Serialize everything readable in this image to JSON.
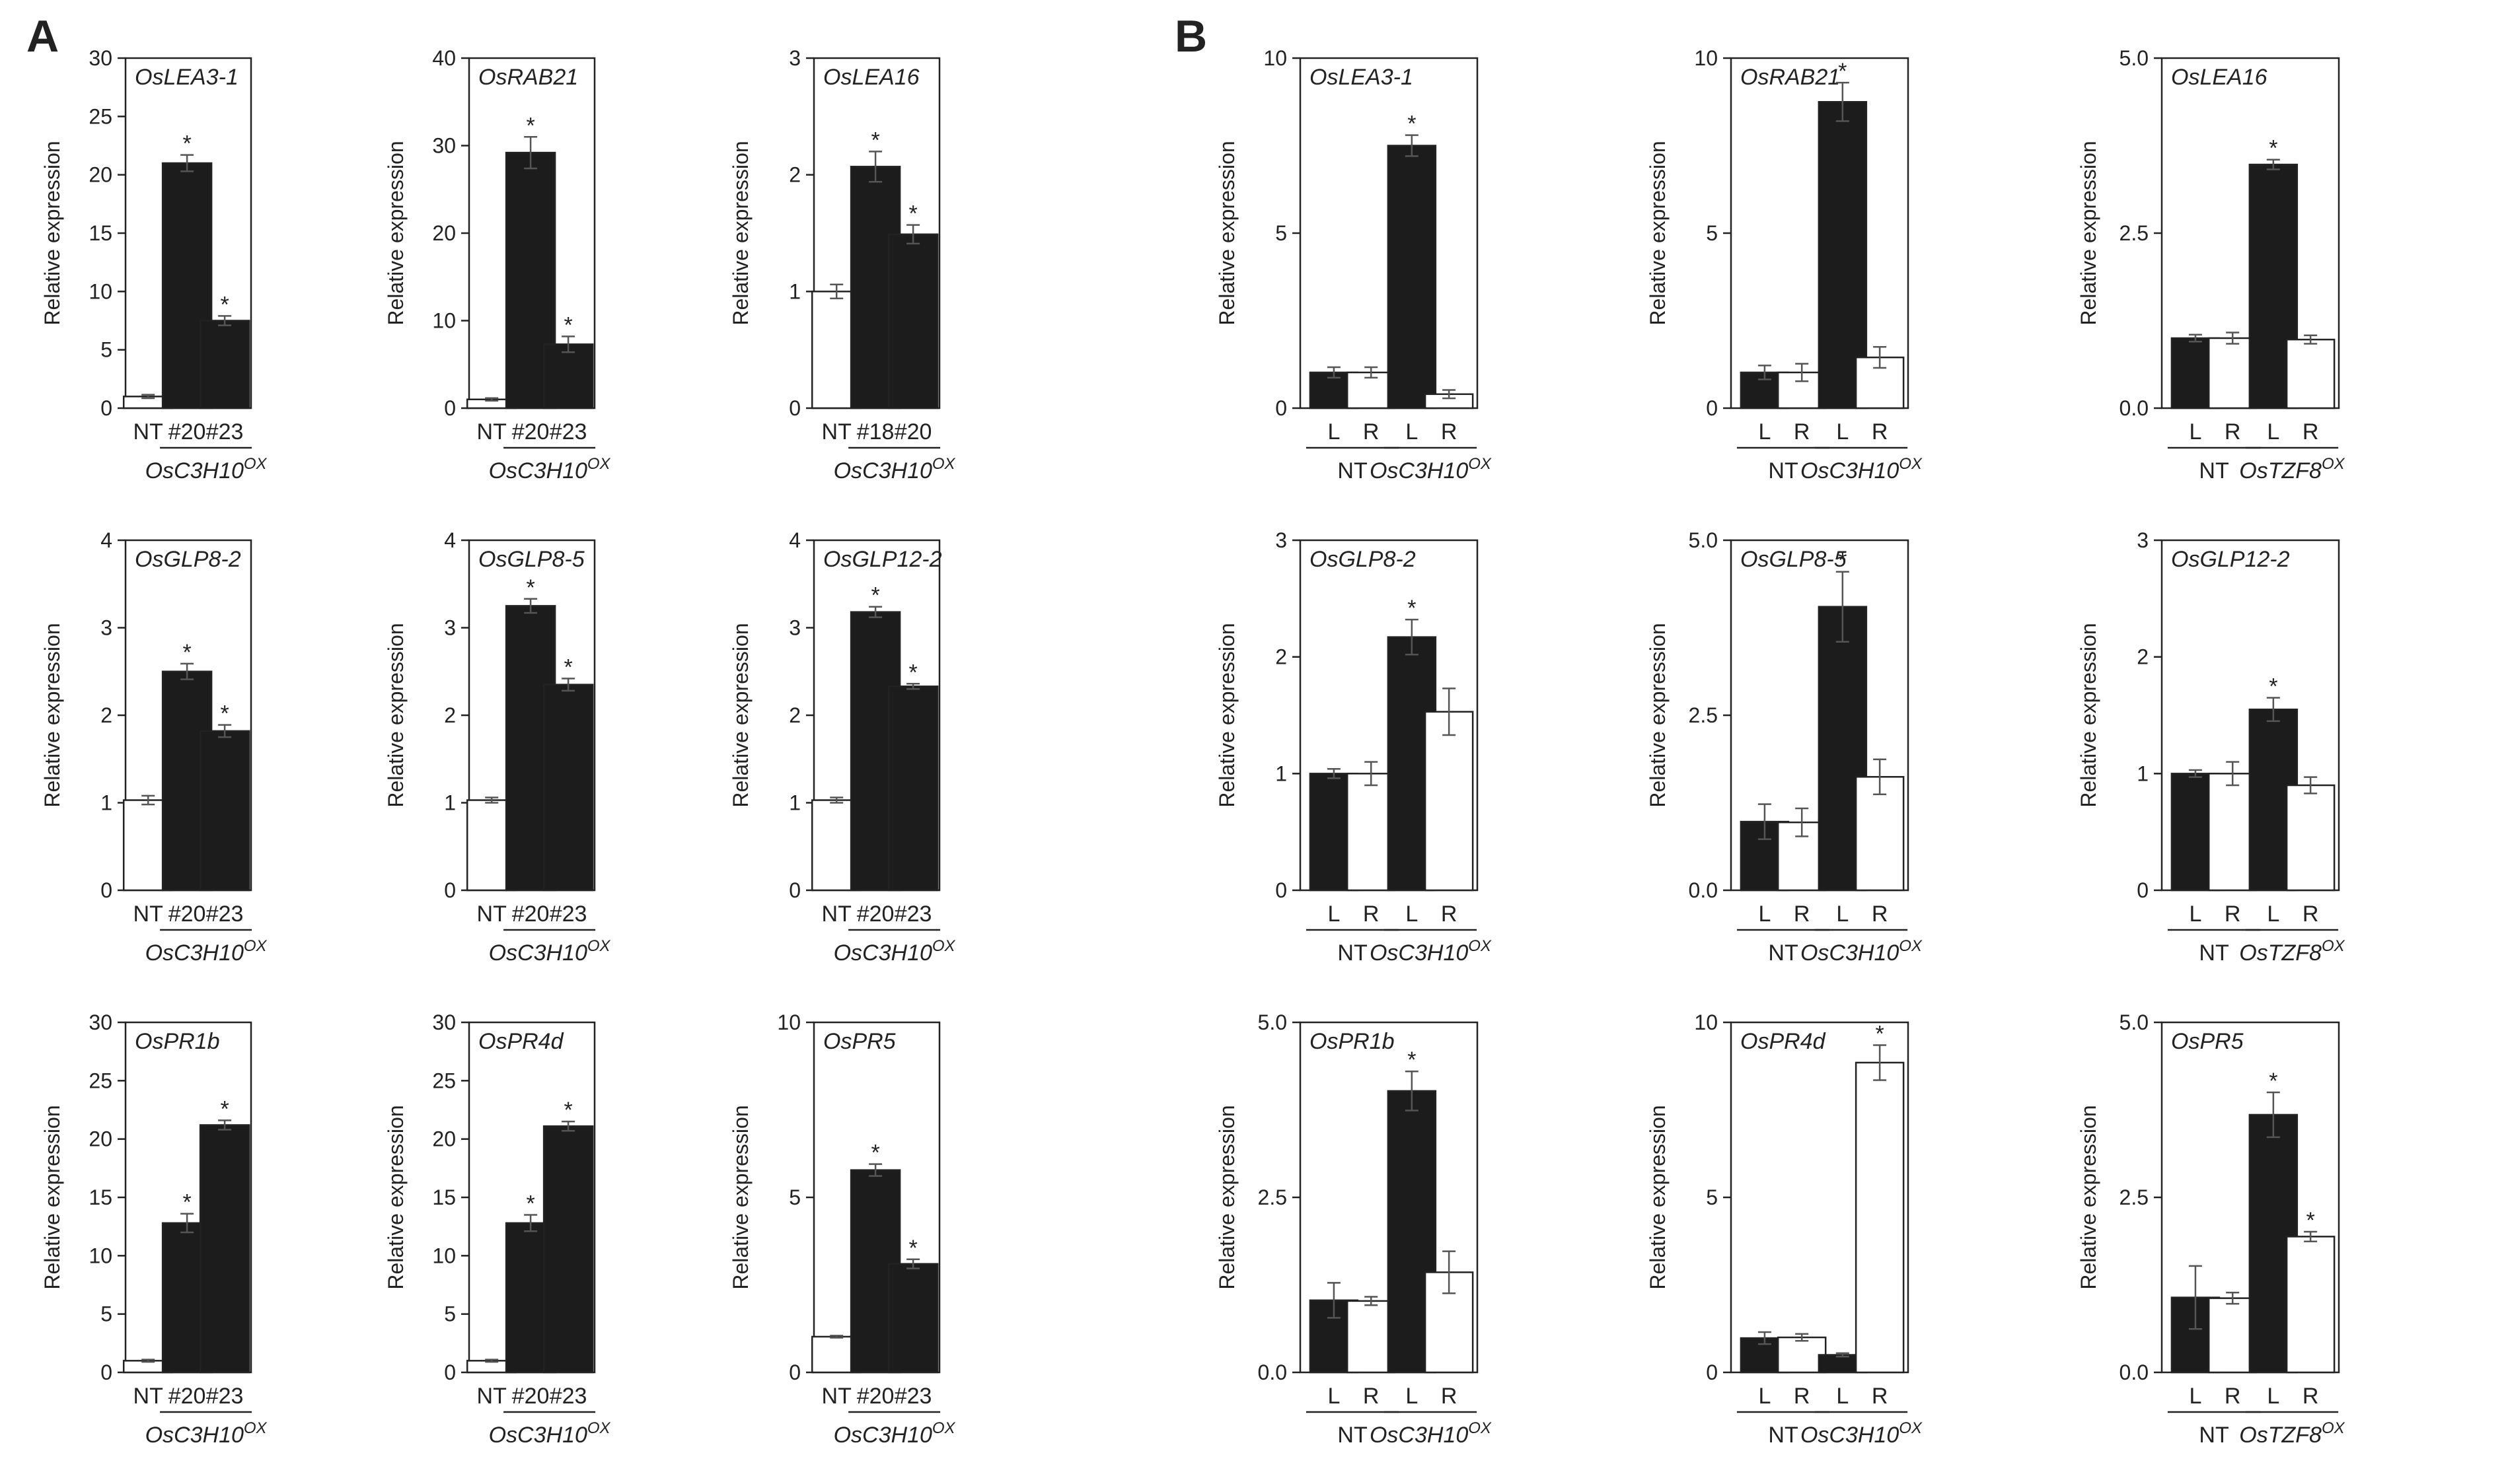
{
  "panels": [
    {
      "letter": "A"
    },
    {
      "letter": "B"
    }
  ],
  "colors": {
    "filled": "#1c1c1c",
    "open": "#ffffff",
    "stroke": "#222222",
    "error": "#555555"
  },
  "chart_data": [
    {
      "panel": "A",
      "type": "bar",
      "title": "OsLEA3-1",
      "ylabel": "Relative expression",
      "ylim": [
        0,
        30
      ],
      "yticks": [
        "0",
        "5",
        "10",
        "15",
        "20",
        "25",
        "30"
      ],
      "categories": [
        "NT",
        "#20",
        "#23"
      ],
      "values": [
        1,
        21,
        7.5
      ],
      "errors": [
        0.15,
        0.7,
        0.4
      ],
      "significant": [
        false,
        true,
        true
      ],
      "fills": [
        "open",
        "filled",
        "filled"
      ],
      "group": {
        "name": "OsC3H10",
        "sup": "OX",
        "members": [
          1,
          2
        ]
      }
    },
    {
      "panel": "A",
      "type": "bar",
      "title": "OsRAB21",
      "ylabel": "Relative expression",
      "ylim": [
        0,
        40
      ],
      "yticks": [
        "0",
        "10",
        "20",
        "30",
        "40"
      ],
      "categories": [
        "NT",
        "#20",
        "#23"
      ],
      "values": [
        1,
        29.2,
        7.3
      ],
      "errors": [
        0.15,
        1.8,
        0.9
      ],
      "significant": [
        false,
        true,
        true
      ],
      "fills": [
        "open",
        "filled",
        "filled"
      ],
      "group": {
        "name": "OsC3H10",
        "sup": "OX",
        "members": [
          1,
          2
        ]
      }
    },
    {
      "panel": "A",
      "type": "bar",
      "title": "OsLEA16",
      "ylabel": "Relative expression",
      "ylim": [
        0,
        3
      ],
      "yticks": [
        "0",
        "1",
        "2",
        "3"
      ],
      "categories": [
        "NT",
        "#18",
        "#20"
      ],
      "values": [
        1,
        2.07,
        1.49
      ],
      "errors": [
        0.06,
        0.13,
        0.08
      ],
      "significant": [
        false,
        true,
        true
      ],
      "fills": [
        "open",
        "filled",
        "filled"
      ],
      "group": {
        "name": "OsC3H10",
        "sup": "OX",
        "members": [
          1,
          2
        ]
      }
    },
    {
      "panel": "A",
      "type": "bar",
      "title": "OsGLP8-2",
      "ylabel": "Relative expression",
      "ylim": [
        0,
        4
      ],
      "yticks": [
        "0",
        "1",
        "2",
        "3",
        "4"
      ],
      "categories": [
        "NT",
        "#20",
        "#23"
      ],
      "values": [
        1.03,
        2.5,
        1.82
      ],
      "errors": [
        0.05,
        0.09,
        0.07
      ],
      "significant": [
        false,
        true,
        true
      ],
      "fills": [
        "open",
        "filled",
        "filled"
      ],
      "group": {
        "name": "OsC3H10",
        "sup": "OX",
        "members": [
          1,
          2
        ]
      }
    },
    {
      "panel": "A",
      "type": "bar",
      "title": "OsGLP8-5",
      "ylabel": "Relative expression",
      "ylim": [
        0,
        4
      ],
      "yticks": [
        "0",
        "1",
        "2",
        "3",
        "4"
      ],
      "categories": [
        "NT",
        "#20",
        "#23"
      ],
      "values": [
        1.03,
        3.25,
        2.35
      ],
      "errors": [
        0.03,
        0.08,
        0.07
      ],
      "significant": [
        false,
        true,
        true
      ],
      "fills": [
        "open",
        "filled",
        "filled"
      ],
      "group": {
        "name": "OsC3H10",
        "sup": "OX",
        "members": [
          1,
          2
        ]
      }
    },
    {
      "panel": "A",
      "type": "bar",
      "title": "OsGLP12-2",
      "ylabel": "Relative expression",
      "ylim": [
        0,
        4
      ],
      "yticks": [
        "0",
        "1",
        "2",
        "3",
        "4"
      ],
      "categories": [
        "NT",
        "#20",
        "#23"
      ],
      "values": [
        1.03,
        3.18,
        2.33
      ],
      "errors": [
        0.03,
        0.06,
        0.03
      ],
      "significant": [
        false,
        true,
        true
      ],
      "fills": [
        "open",
        "filled",
        "filled"
      ],
      "group": {
        "name": "OsC3H10",
        "sup": "OX",
        "members": [
          1,
          2
        ]
      }
    },
    {
      "panel": "A",
      "type": "bar",
      "title": "OsPR1b",
      "ylabel": "Relative expression",
      "ylim": [
        0,
        30
      ],
      "yticks": [
        "0",
        "5",
        "10",
        "15",
        "20",
        "25",
        "30"
      ],
      "categories": [
        "NT",
        "#20",
        "#23"
      ],
      "values": [
        1,
        12.8,
        21.2
      ],
      "errors": [
        0.1,
        0.8,
        0.4
      ],
      "significant": [
        false,
        true,
        true
      ],
      "fills": [
        "open",
        "filled",
        "filled"
      ],
      "group": {
        "name": "OsC3H10",
        "sup": "OX",
        "members": [
          1,
          2
        ]
      }
    },
    {
      "panel": "A",
      "type": "bar",
      "title": "OsPR4d",
      "ylabel": "Relative expression",
      "ylim": [
        0,
        30
      ],
      "yticks": [
        "0",
        "5",
        "10",
        "15",
        "20",
        "25",
        "30"
      ],
      "categories": [
        "NT",
        "#20",
        "#23"
      ],
      "values": [
        1,
        12.8,
        21.1
      ],
      "errors": [
        0.1,
        0.7,
        0.4
      ],
      "significant": [
        false,
        true,
        true
      ],
      "fills": [
        "open",
        "filled",
        "filled"
      ],
      "group": {
        "name": "OsC3H10",
        "sup": "OX",
        "members": [
          1,
          2
        ]
      }
    },
    {
      "panel": "A",
      "type": "bar",
      "title": "OsPR5",
      "ylabel": "Relative expression",
      "ylim": [
        0,
        10
      ],
      "yticks": [
        "0",
        "5",
        "10"
      ],
      "categories": [
        "NT",
        "#20",
        "#23"
      ],
      "values": [
        1.02,
        5.78,
        3.1
      ],
      "errors": [
        0.03,
        0.17,
        0.13
      ],
      "significant": [
        false,
        true,
        true
      ],
      "fills": [
        "open",
        "filled",
        "filled"
      ],
      "group": {
        "name": "OsC3H10",
        "sup": "OX",
        "members": [
          1,
          2
        ]
      }
    },
    {
      "panel": "B",
      "type": "bar",
      "title": "OsLEA3-1",
      "ylabel": "Relative expression",
      "ylim": [
        0,
        10
      ],
      "yticks": [
        "0",
        "5",
        "10"
      ],
      "categories": [
        "L",
        "R",
        "L",
        "R"
      ],
      "values": [
        1.02,
        1.02,
        7.5,
        0.4
      ],
      "errors": [
        0.15,
        0.15,
        0.3,
        0.12
      ],
      "significant": [
        false,
        false,
        true,
        false
      ],
      "fills": [
        "filled",
        "open",
        "filled",
        "open"
      ],
      "groups": [
        {
          "name": "NT",
          "sup": "",
          "members": [
            0,
            1
          ]
        },
        {
          "name": "OsC3H10",
          "sup": "OX",
          "members": [
            2,
            3
          ]
        }
      ]
    },
    {
      "panel": "B",
      "type": "bar",
      "title": "OsRAB21",
      "ylabel": "Relative expression",
      "ylim": [
        0,
        10
      ],
      "yticks": [
        "0",
        "5",
        "10"
      ],
      "categories": [
        "L",
        "R",
        "L",
        "R"
      ],
      "values": [
        1.02,
        1.02,
        8.75,
        1.45
      ],
      "errors": [
        0.2,
        0.25,
        0.55,
        0.3
      ],
      "significant": [
        false,
        false,
        true,
        false
      ],
      "fills": [
        "filled",
        "open",
        "filled",
        "open"
      ],
      "groups": [
        {
          "name": "NT",
          "sup": "",
          "members": [
            0,
            1
          ]
        },
        {
          "name": "OsC3H10",
          "sup": "OX",
          "members": [
            2,
            3
          ]
        }
      ]
    },
    {
      "panel": "B",
      "type": "bar",
      "title": "OsLEA16",
      "ylabel": "Relative expression",
      "ylim": [
        0,
        5
      ],
      "yticks": [
        "0.0",
        "2.5",
        "5.0"
      ],
      "categories": [
        "L",
        "R",
        "L",
        "R"
      ],
      "values": [
        1.0,
        1.0,
        3.48,
        0.98
      ],
      "errors": [
        0.05,
        0.08,
        0.07,
        0.06
      ],
      "significant": [
        false,
        false,
        true,
        false
      ],
      "fills": [
        "filled",
        "open",
        "filled",
        "open"
      ],
      "groups": [
        {
          "name": "NT",
          "sup": "",
          "members": [
            0,
            1
          ]
        },
        {
          "name": "OsTZF8",
          "sup": "OX",
          "members": [
            2,
            3
          ]
        }
      ]
    },
    {
      "panel": "B",
      "type": "bar",
      "title": "OsGLP8-2",
      "ylabel": "Relative expression",
      "ylim": [
        0,
        3
      ],
      "yticks": [
        "0",
        "1",
        "2",
        "3"
      ],
      "categories": [
        "L",
        "R",
        "L",
        "R"
      ],
      "values": [
        1.0,
        1.0,
        2.17,
        1.53
      ],
      "errors": [
        0.04,
        0.1,
        0.15,
        0.2
      ],
      "significant": [
        false,
        false,
        true,
        false
      ],
      "fills": [
        "filled",
        "open",
        "filled",
        "open"
      ],
      "groups": [
        {
          "name": "NT",
          "sup": "",
          "members": [
            0,
            1
          ]
        },
        {
          "name": "OsC3H10",
          "sup": "OX",
          "members": [
            2,
            3
          ]
        }
      ]
    },
    {
      "panel": "B",
      "type": "bar",
      "title": "OsGLP8-5",
      "ylabel": "Relative expression",
      "ylim": [
        0,
        5
      ],
      "yticks": [
        "0.0",
        "2.5",
        "5.0"
      ],
      "categories": [
        "L",
        "R",
        "L",
        "R"
      ],
      "values": [
        0.98,
        0.97,
        4.05,
        1.62
      ],
      "errors": [
        0.25,
        0.2,
        0.5,
        0.25
      ],
      "significant": [
        false,
        false,
        true,
        false
      ],
      "fills": [
        "filled",
        "open",
        "filled",
        "open"
      ],
      "groups": [
        {
          "name": "NT",
          "sup": "",
          "members": [
            0,
            1
          ]
        },
        {
          "name": "OsC3H10",
          "sup": "OX",
          "members": [
            2,
            3
          ]
        }
      ]
    },
    {
      "panel": "B",
      "type": "bar",
      "title": "OsGLP12-2",
      "ylabel": "Relative expression",
      "ylim": [
        0,
        3
      ],
      "yticks": [
        "0",
        "1",
        "2",
        "3"
      ],
      "categories": [
        "L",
        "R",
        "L",
        "R"
      ],
      "values": [
        1.0,
        1.0,
        1.55,
        0.9
      ],
      "errors": [
        0.03,
        0.1,
        0.1,
        0.07
      ],
      "significant": [
        false,
        false,
        true,
        false
      ],
      "fills": [
        "filled",
        "open",
        "filled",
        "open"
      ],
      "groups": [
        {
          "name": "NT",
          "sup": "",
          "members": [
            0,
            1
          ]
        },
        {
          "name": "OsTZF8",
          "sup": "OX",
          "members": [
            2,
            3
          ]
        }
      ]
    },
    {
      "panel": "B",
      "type": "bar",
      "title": "OsPR1b",
      "ylabel": "Relative expression",
      "ylim": [
        0,
        5
      ],
      "yticks": [
        "0.0",
        "2.5",
        "5.0"
      ],
      "categories": [
        "L",
        "R",
        "L",
        "R"
      ],
      "values": [
        1.03,
        1.02,
        4.02,
        1.43
      ],
      "errors": [
        0.25,
        0.06,
        0.28,
        0.3
      ],
      "significant": [
        false,
        false,
        true,
        false
      ],
      "fills": [
        "filled",
        "open",
        "filled",
        "open"
      ],
      "groups": [
        {
          "name": "NT",
          "sup": "",
          "members": [
            0,
            1
          ]
        },
        {
          "name": "OsC3H10",
          "sup": "OX",
          "members": [
            2,
            3
          ]
        }
      ]
    },
    {
      "panel": "B",
      "type": "bar",
      "title": "OsPR4d",
      "ylabel": "Relative expression",
      "ylim": [
        0,
        10
      ],
      "yticks": [
        "0",
        "5",
        "10"
      ],
      "categories": [
        "L",
        "R",
        "L",
        "R"
      ],
      "values": [
        0.98,
        1.0,
        0.5,
        8.85
      ],
      "errors": [
        0.17,
        0.1,
        0.05,
        0.5
      ],
      "significant": [
        false,
        false,
        false,
        true
      ],
      "fills": [
        "filled",
        "open",
        "filled",
        "open"
      ],
      "groups": [
        {
          "name": "NT",
          "sup": "",
          "members": [
            0,
            1
          ]
        },
        {
          "name": "OsC3H10",
          "sup": "OX",
          "members": [
            2,
            3
          ]
        }
      ]
    },
    {
      "panel": "B",
      "type": "bar",
      "title": "OsPR5",
      "ylabel": "Relative expression",
      "ylim": [
        0,
        5
      ],
      "yticks": [
        "0.0",
        "2.5",
        "5.0"
      ],
      "categories": [
        "L",
        "R",
        "L",
        "R"
      ],
      "values": [
        1.07,
        1.06,
        3.68,
        1.94
      ],
      "errors": [
        0.45,
        0.08,
        0.32,
        0.07
      ],
      "significant": [
        false,
        false,
        true,
        true
      ],
      "fills": [
        "filled",
        "open",
        "filled",
        "open"
      ],
      "groups": [
        {
          "name": "NT",
          "sup": "",
          "members": [
            0,
            1
          ]
        },
        {
          "name": "OsTZF8",
          "sup": "OX",
          "members": [
            2,
            3
          ]
        }
      ]
    }
  ]
}
